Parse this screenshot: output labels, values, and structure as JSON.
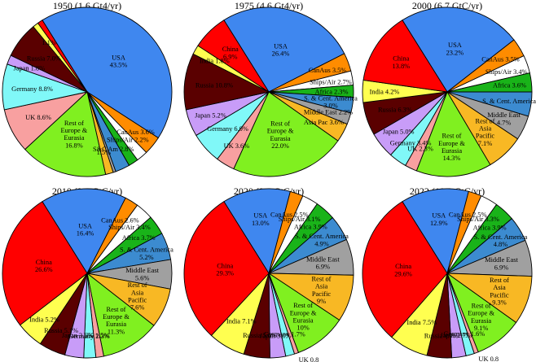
{
  "figure": {
    "background": "#ffffff"
  },
  "chart_data": [
    {
      "type": "pie",
      "title": "1950 (1.6 Gt4/yr)",
      "slices": [
        {
          "label": "USA",
          "value": 43.5,
          "label_lines": [
            "USA",
            "43.5%"
          ],
          "color": "#3f87ef"
        },
        {
          "label": "CanAus",
          "value": 3.6,
          "label_lines": [
            "CanAus 3.6%"
          ],
          "color": "#ff8c00"
        },
        {
          "label": "Ships/Air",
          "value": 2.2,
          "label_lines": [
            "Ships/Air 2.2%"
          ],
          "color": "#ffffff"
        },
        {
          "label": "Africa",
          "value": 1.9,
          "label_lines": [],
          "color": "#19b319"
        },
        {
          "label": "S&C Am",
          "value": 2.8,
          "label_lines": [
            "S&C Am 2.8%"
          ],
          "color": "#3c8bd0"
        },
        {
          "label": "Middle East",
          "value": 0.5,
          "label_lines": [],
          "color": "#a0a0a0"
        },
        {
          "label": "Asia Pac",
          "value": 1.5,
          "label_lines": [
            "1.5%"
          ],
          "color": "#f8b824"
        },
        {
          "label": "Rest of Europe & Eurasia",
          "value": 16.8,
          "label_lines": [
            "Rest of",
            "Europe &",
            "Eurasia",
            "16.8%"
          ],
          "color": "#80f020"
        },
        {
          "label": "UK",
          "value": 8.6,
          "label_lines": [
            "UK 8.6%"
          ],
          "color": "#f8a0a0"
        },
        {
          "label": "Germany",
          "value": 8.8,
          "label_lines": [
            "Germany 8.8%"
          ],
          "color": "#80f8f8"
        },
        {
          "label": "Japan",
          "value": 1.8,
          "label_lines": [
            "Japan 1.8%"
          ],
          "color": "#c89cf8"
        },
        {
          "label": "Russia",
          "value": 7.0,
          "label_lines": [
            "Russia 7.0%"
          ],
          "color": "#5a0000"
        },
        {
          "label": "India",
          "value": 1.1,
          "label_lines": [
            "1.1%"
          ],
          "color": "#ffff50"
        },
        {
          "label": "China",
          "value": 1.0,
          "label_lines": [],
          "color": "#ff0000"
        }
      ]
    },
    {
      "type": "pie",
      "title": "1975 (4.6 Gt4/yr)",
      "slices": [
        {
          "label": "USA",
          "value": 26.4,
          "label_lines": [
            "USA",
            "26.4%"
          ],
          "color": "#3f87ef"
        },
        {
          "label": "CanAus",
          "value": 3.5,
          "label_lines": [
            "CanAus 3.5%"
          ],
          "color": "#ff8c00"
        },
        {
          "label": "Ships/Air",
          "value": 2.7,
          "label_lines": [
            "Ships/Air 2.7%"
          ],
          "color": "#ffffff"
        },
        {
          "label": "Africa",
          "value": 2.3,
          "label_lines": [
            "Africa 2.3%"
          ],
          "color": "#19b319"
        },
        {
          "label": "S. & Cent. America",
          "value": 3.0,
          "label_lines": [
            "S. & Cent. America",
            "3.0%"
          ],
          "color": "#3c8bd0"
        },
        {
          "label": "Middle East",
          "value": 2.2,
          "label_lines": [
            "Middle East 2.2%"
          ],
          "color": "#a0a0a0"
        },
        {
          "label": "Asia Pac",
          "value": 3.6,
          "label_lines": [
            "Asia Pac 3.6%"
          ],
          "color": "#f8b824"
        },
        {
          "label": "Rest of Europe & Eurasia",
          "value": 22.0,
          "label_lines": [
            "Rest of",
            "Europe &",
            "Eurasia",
            "22.0%"
          ],
          "color": "#80f020"
        },
        {
          "label": "UK",
          "value": 3.6,
          "label_lines": [
            "UK 3.6%"
          ],
          "color": "#f8a0a0"
        },
        {
          "label": "Germany",
          "value": 6.0,
          "label_lines": [
            "Germany 6.0%"
          ],
          "color": "#80f8f8"
        },
        {
          "label": "Japan",
          "value": 5.2,
          "label_lines": [
            "Japan 5.2%"
          ],
          "color": "#c89cf8"
        },
        {
          "label": "Russia",
          "value": 10.8,
          "label_lines": [
            "Russia 10.8%"
          ],
          "color": "#5a0000"
        },
        {
          "label": "India",
          "value": 1.8,
          "label_lines": [
            "India 1.8%"
          ],
          "color": "#ffff50"
        },
        {
          "label": "China",
          "value": 6.9,
          "label_lines": [
            "China",
            "6.9%"
          ],
          "color": "#ff0000"
        }
      ]
    },
    {
      "type": "pie",
      "title": "2000 (6.7 GtC/yr)",
      "slices": [
        {
          "label": "USA",
          "value": 23.2,
          "label_lines": [
            "USA",
            "23.2%"
          ],
          "color": "#3f87ef"
        },
        {
          "label": "CanAus",
          "value": 3.5,
          "label_lines": [
            "CanAus 3.5%"
          ],
          "color": "#ff8c00"
        },
        {
          "label": "Ships/Air",
          "value": 3.4,
          "label_lines": [
            "Ships/Air 3.4%"
          ],
          "color": "#ffffff"
        },
        {
          "label": "Africa",
          "value": 3.6,
          "label_lines": [
            "Africa 3.6%"
          ],
          "color": "#19b319"
        },
        {
          "label": "S. & Cent. America",
          "value": 4.6,
          "label_lines": [
            "S. & Cent. America"
          ],
          "color": "#3c8bd0"
        },
        {
          "label": "Middle East",
          "value": 4.7,
          "label_lines": [
            "Middle East",
            "4.7%"
          ],
          "color": "#a0a0a0"
        },
        {
          "label": "Rest of Asia Pacific",
          "value": 7.1,
          "label_lines": [
            "Rest of",
            "Asia",
            "Pacific",
            "7.1%"
          ],
          "color": "#f8b824"
        },
        {
          "label": "Rest of Europe & Eurasia",
          "value": 14.3,
          "label_lines": [
            "Rest of",
            "Europe &",
            "Eurasia",
            "14.3%"
          ],
          "color": "#80f020"
        },
        {
          "label": "UK",
          "value": 2.3,
          "label_lines": [
            "UK 2.3%"
          ],
          "color": "#f8a0a0"
        },
        {
          "label": "Germany",
          "value": 3.4,
          "label_lines": [
            "Germany 3.4%"
          ],
          "color": "#80f8f8"
        },
        {
          "label": "Japan",
          "value": 5.0,
          "label_lines": [
            "Japan 5.0%"
          ],
          "color": "#c89cf8"
        },
        {
          "label": "Russia",
          "value": 6.3,
          "label_lines": [
            "Russia 6.3%"
          ],
          "color": "#5a0000"
        },
        {
          "label": "India",
          "value": 4.2,
          "label_lines": [
            "India 4.2%"
          ],
          "color": "#ffff50"
        },
        {
          "label": "China",
          "value": 13.8,
          "label_lines": [
            "China",
            "13.8%"
          ],
          "color": "#ff0000"
        }
      ]
    },
    {
      "type": "pie",
      "title": "2010 (9.1 GtC/yr)",
      "slices": [
        {
          "label": "USA",
          "value": 16.4,
          "label_lines": [
            "USA",
            "16.4%"
          ],
          "color": "#3f87ef"
        },
        {
          "label": "CanAus",
          "value": 2.6,
          "label_lines": [
            "CanAus 2.6%"
          ],
          "color": "#ff8c00"
        },
        {
          "label": "Ships/Air",
          "value": 3.4,
          "label_lines": [
            "Ships/Air 3.4%"
          ],
          "color": "#ffffff"
        },
        {
          "label": "Africa",
          "value": 3.7,
          "label_lines": [
            "Africa 3.7%"
          ],
          "color": "#19b319"
        },
        {
          "label": "S. & Cent. America",
          "value": 5.2,
          "label_lines": [
            "S. & Cent. America",
            "5.2%"
          ],
          "color": "#3c8bd0"
        },
        {
          "label": "Middle East",
          "value": 5.6,
          "label_lines": [
            "Middle East",
            "5.6%"
          ],
          "color": "#a0a0a0"
        },
        {
          "label": "Rest of Asia Pacific",
          "value": 7.6,
          "label_lines": [
            "Rest of",
            "Asia",
            "Pacific",
            "7.6%"
          ],
          "color": "#f8b824"
        },
        {
          "label": "Rest of Europe & Eurasia",
          "value": 11.3,
          "label_lines": [
            "Rest of",
            "Europe &",
            "Eurasia",
            "11.3%"
          ],
          "color": "#80f020"
        },
        {
          "label": "UK",
          "value": 1.5,
          "label_lines": [
            "UK 1.5%"
          ],
          "color": "#f8a0a0"
        },
        {
          "label": "Germany",
          "value": 2.3,
          "label_lines": [
            "Germany 2.3%"
          ],
          "color": "#80f8f8"
        },
        {
          "label": "Japan",
          "value": 3.6,
          "label_lines": [
            "Japan 3.6%"
          ],
          "color": "#c89cf8"
        },
        {
          "label": "Russia",
          "value": 5.1,
          "label_lines": [
            "Russia 5.1%"
          ],
          "color": "#5a0000"
        },
        {
          "label": "India",
          "value": 5.2,
          "label_lines": [
            "India 5.2%"
          ],
          "color": "#ffff50"
        },
        {
          "label": "China",
          "value": 26.6,
          "label_lines": [
            "China",
            "26.6%"
          ],
          "color": "#ff0000"
        }
      ]
    },
    {
      "type": "pie",
      "title": "2020 (9.4 GtC/yr)",
      "slices": [
        {
          "label": "USA",
          "value": 13.0,
          "label_lines": [
            "USA",
            "13.0%"
          ],
          "color": "#3f87ef"
        },
        {
          "label": "CanAus",
          "value": 2.5,
          "label_lines": [
            "CanAus 2.5%"
          ],
          "color": "#ff8c00"
        },
        {
          "label": "Ships/Air",
          "value": 3.1,
          "label_lines": [
            "Ships/Air 3.1%"
          ],
          "color": "#ffffff"
        },
        {
          "label": "Africa",
          "value": 3.9,
          "label_lines": [
            "Africa 3.9%"
          ],
          "color": "#19b319"
        },
        {
          "label": "S. & Cent. America",
          "value": 4.9,
          "label_lines": [
            "S. & Cent. America",
            "4.9%"
          ],
          "color": "#3c8bd0"
        },
        {
          "label": "Middle East",
          "value": 6.9,
          "label_lines": [
            "Middle East",
            "6.9%"
          ],
          "color": "#a0a0a0"
        },
        {
          "label": "Rest of Asia Pacific",
          "value": 9.0,
          "label_lines": [
            "Rest of",
            "Asia",
            "Pacific",
            "9%"
          ],
          "color": "#f8b824"
        },
        {
          "label": "Rest of Europe & Eurasia",
          "value": 10.0,
          "label_lines": [
            "Rest of",
            "Europe &",
            "Eurasia",
            "10%"
          ],
          "color": "#80f020"
        },
        {
          "label": "UK",
          "value": 0.8,
          "label_lines": [
            "UK 0.8"
          ],
          "color": "#f8a0a0",
          "outside_label": true
        },
        {
          "label": "Germany",
          "value": 1.7,
          "label_lines": [
            "Germany 1.7%"
          ],
          "color": "#80f8f8"
        },
        {
          "label": "Japan",
          "value": 3.0,
          "label_lines": [
            "Japan 3.0%"
          ],
          "color": "#c89cf8"
        },
        {
          "label": "Russia",
          "value": 5.0,
          "label_lines": [
            "Russia 5.0%"
          ],
          "color": "#5a0000"
        },
        {
          "label": "India",
          "value": 7.1,
          "label_lines": [
            "India 7.1%"
          ],
          "color": "#ffff50"
        },
        {
          "label": "China",
          "value": 29.3,
          "label_lines": [
            "China",
            "29.3%"
          ],
          "color": "#ff0000"
        }
      ]
    },
    {
      "type": "pie",
      "title": "2022 (10.3 GtC/yr)",
      "slices": [
        {
          "label": "USA",
          "value": 12.9,
          "label_lines": [
            "USA",
            "12.9%"
          ],
          "color": "#3f87ef"
        },
        {
          "label": "CanAus",
          "value": 2.5,
          "label_lines": [
            "CanAus 2.5%"
          ],
          "color": "#ff8c00"
        },
        {
          "label": "Ships/Air",
          "value": 3.3,
          "label_lines": [
            "Ships/Air 3.3%"
          ],
          "color": "#ffffff"
        },
        {
          "label": "Africa",
          "value": 3.9,
          "label_lines": [
            "Africa 3.9%"
          ],
          "color": "#19b319"
        },
        {
          "label": "S. & Cent. America",
          "value": 4.8,
          "label_lines": [
            "S. & Cent. America",
            "4.8%"
          ],
          "color": "#3c8bd0"
        },
        {
          "label": "Middle East",
          "value": 6.9,
          "label_lines": [
            "Middle East",
            "6.9%"
          ],
          "color": "#a0a0a0"
        },
        {
          "label": "Rest of Asia Pacific",
          "value": 9.3,
          "label_lines": [
            "Rest of",
            "Asia",
            "Pacific",
            "9.3%"
          ],
          "color": "#f8b824"
        },
        {
          "label": "Rest of Europe & Eurasia",
          "value": 9.1,
          "label_lines": [
            "Rest of",
            "Europe &",
            "Eurasia",
            "9.1%"
          ],
          "color": "#80f020"
        },
        {
          "label": "UK",
          "value": 0.8,
          "label_lines": [
            "UK 0.8"
          ],
          "color": "#f8a0a0",
          "outside_label": true
        },
        {
          "label": "Germany",
          "value": 1.6,
          "label_lines": [
            "Germany 1.6%"
          ],
          "color": "#80f8f8"
        },
        {
          "label": "Japan",
          "value": 2.7,
          "label_lines": [
            "Japan 2.7%"
          ],
          "color": "#c89cf8"
        },
        {
          "label": "Russia",
          "value": 4.7,
          "label_lines": [
            "Russia 4.7%"
          ],
          "color": "#5a0000"
        },
        {
          "label": "India",
          "value": 7.5,
          "label_lines": [
            "India 7.5%"
          ],
          "color": "#ffff50"
        },
        {
          "label": "China",
          "value": 29.6,
          "label_lines": [
            "China",
            "29.6%"
          ],
          "color": "#ff0000"
        }
      ]
    }
  ]
}
